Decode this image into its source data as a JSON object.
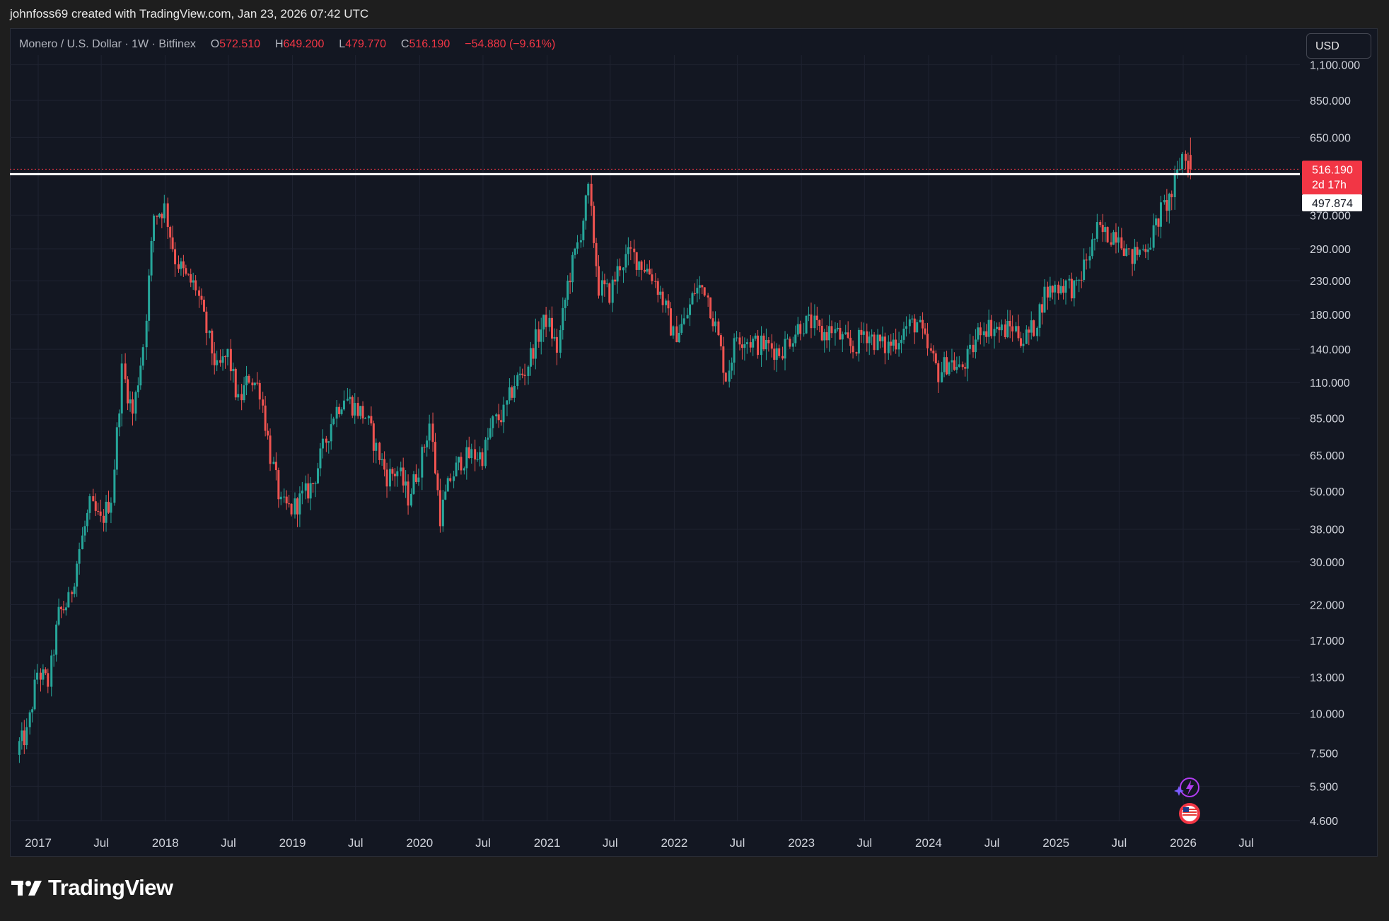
{
  "attribution": "johnfoss69 created with TradingView.com, Jan 23, 2026 07:42 UTC",
  "legend": {
    "symbol": "Monero / U.S. Dollar · 1W · Bitfinex",
    "open_label": "O",
    "open": "572.510",
    "high_label": "H",
    "high": "649.200",
    "low_label": "L",
    "low": "479.770",
    "close_label": "C",
    "close": "516.190",
    "change": "−54.880 (−9.61%)"
  },
  "currency_button": "USD",
  "brand": "TradingView",
  "price_badge": {
    "price": "516.190",
    "countdown": "2d 17h",
    "color": "#f23645"
  },
  "line_badge": {
    "price": "497.874"
  },
  "colors": {
    "up": "#26a69a",
    "down": "#ef5350",
    "line": "#ffffff",
    "grid": "#1f2331",
    "background": "#131722"
  },
  "chart_data": {
    "type": "candlestick",
    "scale": "log",
    "y_ticks": [
      "1,100.000",
      "850.000",
      "650.000",
      "370.000",
      "290.000",
      "230.000",
      "180.000",
      "140.000",
      "110.000",
      "85.000",
      "65.000",
      "50.000",
      "38.000",
      "30.000",
      "22.000",
      "17.000",
      "13.000",
      "10.000",
      "7.500",
      "5.900",
      "4.600"
    ],
    "x_ticks": [
      {
        "label": "2017",
        "date": "2017-01-01"
      },
      {
        "label": "Jul",
        "date": "2017-07-01"
      },
      {
        "label": "2018",
        "date": "2018-01-01"
      },
      {
        "label": "Jul",
        "date": "2018-07-01"
      },
      {
        "label": "2019",
        "date": "2019-01-01"
      },
      {
        "label": "Jul",
        "date": "2019-07-01"
      },
      {
        "label": "2020",
        "date": "2020-01-01"
      },
      {
        "label": "Jul",
        "date": "2020-07-01"
      },
      {
        "label": "2021",
        "date": "2021-01-01"
      },
      {
        "label": "Jul",
        "date": "2021-07-01"
      },
      {
        "label": "2022",
        "date": "2022-01-01"
      },
      {
        "label": "Jul",
        "date": "2022-07-01"
      },
      {
        "label": "2023",
        "date": "2023-01-01"
      },
      {
        "label": "Jul",
        "date": "2023-07-01"
      },
      {
        "label": "2024",
        "date": "2024-01-01"
      },
      {
        "label": "Jul",
        "date": "2024-07-01"
      },
      {
        "label": "2025",
        "date": "2025-01-01"
      },
      {
        "label": "Jul",
        "date": "2025-07-01"
      },
      {
        "label": "2026",
        "date": "2026-01-01"
      },
      {
        "label": "Jul",
        "date": "2026-07-01"
      }
    ],
    "horizontal_line": 497.874,
    "last_price": 516.19,
    "closes": [
      {
        "date": "2016-11-01",
        "close": 7.8
      },
      {
        "date": "2016-12-01",
        "close": 8.6
      },
      {
        "date": "2017-01-01",
        "close": 13.5
      },
      {
        "date": "2017-02-01",
        "close": 12.5
      },
      {
        "date": "2017-03-01",
        "close": 20.5
      },
      {
        "date": "2017-04-01",
        "close": 22.5
      },
      {
        "date": "2017-05-01",
        "close": 33.0
      },
      {
        "date": "2017-06-01",
        "close": 45.0
      },
      {
        "date": "2017-07-01",
        "close": 40.0
      },
      {
        "date": "2017-08-01",
        "close": 48.0
      },
      {
        "date": "2017-09-01",
        "close": 120.0
      },
      {
        "date": "2017-10-01",
        "close": 88.0
      },
      {
        "date": "2017-11-01",
        "close": 145.0
      },
      {
        "date": "2017-12-01",
        "close": 370.0
      },
      {
        "date": "2018-01-01",
        "close": 390.0
      },
      {
        "date": "2018-02-01",
        "close": 270.0
      },
      {
        "date": "2018-03-01",
        "close": 235.0
      },
      {
        "date": "2018-04-01",
        "close": 220.0
      },
      {
        "date": "2018-05-01",
        "close": 160.0
      },
      {
        "date": "2018-06-01",
        "close": 120.0
      },
      {
        "date": "2018-07-01",
        "close": 135.0
      },
      {
        "date": "2018-08-01",
        "close": 95.0
      },
      {
        "date": "2018-09-01",
        "close": 115.0
      },
      {
        "date": "2018-10-01",
        "close": 105.0
      },
      {
        "date": "2018-11-01",
        "close": 65.0
      },
      {
        "date": "2018-12-01",
        "close": 45.0
      },
      {
        "date": "2019-01-01",
        "close": 44.0
      },
      {
        "date": "2019-02-01",
        "close": 48.0
      },
      {
        "date": "2019-03-01",
        "close": 53.0
      },
      {
        "date": "2019-04-01",
        "close": 68.0
      },
      {
        "date": "2019-05-01",
        "close": 88.0
      },
      {
        "date": "2019-06-01",
        "close": 100.0
      },
      {
        "date": "2019-07-01",
        "close": 92.0
      },
      {
        "date": "2019-08-01",
        "close": 86.0
      },
      {
        "date": "2019-09-01",
        "close": 68.0
      },
      {
        "date": "2019-10-01",
        "close": 56.0
      },
      {
        "date": "2019-11-01",
        "close": 58.0
      },
      {
        "date": "2019-12-01",
        "close": 48.0
      },
      {
        "date": "2020-01-01",
        "close": 60.0
      },
      {
        "date": "2020-02-01",
        "close": 82.0
      },
      {
        "date": "2020-03-01",
        "close": 42.0
      },
      {
        "date": "2020-04-01",
        "close": 55.0
      },
      {
        "date": "2020-05-01",
        "close": 63.0
      },
      {
        "date": "2020-06-01",
        "close": 65.0
      },
      {
        "date": "2020-07-01",
        "close": 65.0
      },
      {
        "date": "2020-08-01",
        "close": 82.0
      },
      {
        "date": "2020-09-01",
        "close": 88.0
      },
      {
        "date": "2020-10-01",
        "close": 110.0
      },
      {
        "date": "2020-11-01",
        "close": 120.0
      },
      {
        "date": "2020-12-01",
        "close": 150.0
      },
      {
        "date": "2021-01-01",
        "close": 175.0
      },
      {
        "date": "2021-02-01",
        "close": 140.0
      },
      {
        "date": "2021-03-01",
        "close": 225.0
      },
      {
        "date": "2021-04-01",
        "close": 300.0
      },
      {
        "date": "2021-05-01",
        "close": 440.0
      },
      {
        "date": "2021-06-01",
        "close": 220.0
      },
      {
        "date": "2021-07-01",
        "close": 210.0
      },
      {
        "date": "2021-08-01",
        "close": 260.0
      },
      {
        "date": "2021-09-01",
        "close": 280.0
      },
      {
        "date": "2021-10-01",
        "close": 260.0
      },
      {
        "date": "2021-11-01",
        "close": 240.0
      },
      {
        "date": "2021-12-01",
        "close": 200.0
      },
      {
        "date": "2022-01-01",
        "close": 155.0
      },
      {
        "date": "2022-02-01",
        "close": 170.0
      },
      {
        "date": "2022-03-01",
        "close": 215.0
      },
      {
        "date": "2022-04-01",
        "close": 220.0
      },
      {
        "date": "2022-05-01",
        "close": 165.0
      },
      {
        "date": "2022-06-01",
        "close": 115.0
      },
      {
        "date": "2022-07-01",
        "close": 155.0
      },
      {
        "date": "2022-08-01",
        "close": 150.0
      },
      {
        "date": "2022-09-01",
        "close": 145.0
      },
      {
        "date": "2022-10-01",
        "close": 143.0
      },
      {
        "date": "2022-11-01",
        "close": 138.0
      },
      {
        "date": "2022-12-01",
        "close": 152.0
      },
      {
        "date": "2023-01-01",
        "close": 168.0
      },
      {
        "date": "2023-02-01",
        "close": 170.0
      },
      {
        "date": "2023-03-01",
        "close": 155.0
      },
      {
        "date": "2023-04-01",
        "close": 162.0
      },
      {
        "date": "2023-05-01",
        "close": 150.0
      },
      {
        "date": "2023-06-01",
        "close": 140.0
      },
      {
        "date": "2023-07-01",
        "close": 160.0
      },
      {
        "date": "2023-08-01",
        "close": 150.0
      },
      {
        "date": "2023-09-01",
        "close": 142.0
      },
      {
        "date": "2023-10-01",
        "close": 150.0
      },
      {
        "date": "2023-11-01",
        "close": 165.0
      },
      {
        "date": "2023-12-01",
        "close": 170.0
      },
      {
        "date": "2024-01-01",
        "close": 140.0
      },
      {
        "date": "2024-02-01",
        "close": 118.0
      },
      {
        "date": "2024-03-01",
        "close": 130.0
      },
      {
        "date": "2024-04-01",
        "close": 120.0
      },
      {
        "date": "2024-05-01",
        "close": 135.0
      },
      {
        "date": "2024-06-01",
        "close": 165.0
      },
      {
        "date": "2024-07-01",
        "close": 165.0
      },
      {
        "date": "2024-08-01",
        "close": 160.0
      },
      {
        "date": "2024-09-01",
        "close": 165.0
      },
      {
        "date": "2024-10-01",
        "close": 150.0
      },
      {
        "date": "2024-11-01",
        "close": 165.0
      },
      {
        "date": "2024-12-01",
        "close": 210.0
      },
      {
        "date": "2025-01-01",
        "close": 220.0
      },
      {
        "date": "2025-02-01",
        "close": 225.0
      },
      {
        "date": "2025-03-01",
        "close": 215.0
      },
      {
        "date": "2025-04-01",
        "close": 270.0
      },
      {
        "date": "2025-05-01",
        "close": 330.0
      },
      {
        "date": "2025-06-01",
        "close": 320.0
      },
      {
        "date": "2025-07-01",
        "close": 330.0
      },
      {
        "date": "2025-08-01",
        "close": 270.0
      },
      {
        "date": "2025-09-01",
        "close": 285.0
      },
      {
        "date": "2025-10-01",
        "close": 310.0
      },
      {
        "date": "2025-11-01",
        "close": 380.0
      },
      {
        "date": "2025-12-01",
        "close": 430.0
      },
      {
        "date": "2026-01-01",
        "close": 572.51
      },
      {
        "date": "2026-01-19",
        "close": 516.19
      }
    ]
  }
}
